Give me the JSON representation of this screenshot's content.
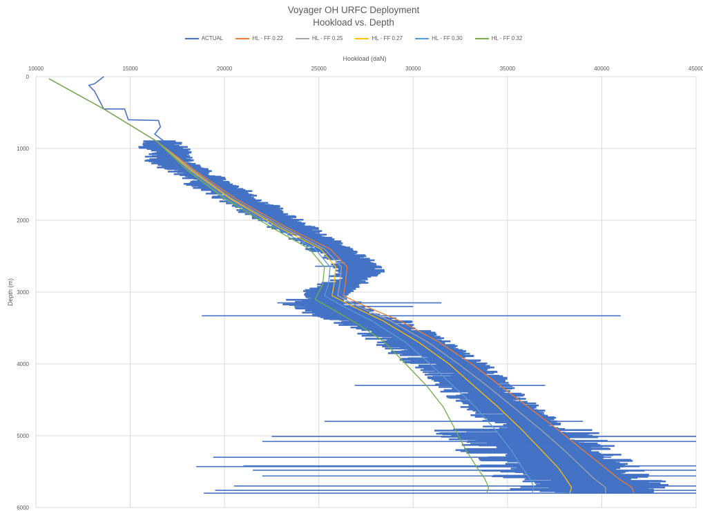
{
  "chart_data": {
    "type": "line",
    "title": "Voyager OH URFC Deployment",
    "subtitle": "Hookload vs. Depth",
    "xlabel": "Hookload (daN)",
    "ylabel": "Depth (m)",
    "xlim": [
      10000,
      45000
    ],
    "ylim": [
      0,
      6000
    ],
    "x_axis_position": "top",
    "y_axis_reversed": true,
    "grid": true,
    "legend_position": "top",
    "xticks": [
      "10000",
      "15000",
      "20000",
      "25000",
      "30000",
      "35000",
      "40000",
      "45000"
    ],
    "yticks": [
      "0",
      "1000",
      "2000",
      "3000",
      "4000",
      "5000",
      "6000"
    ],
    "series": [
      {
        "name": "ACTUAL",
        "color": "#4472C4",
        "width": 2.2,
        "points": [
          [
            13600,
            0
          ],
          [
            13100,
            100
          ],
          [
            12800,
            120
          ],
          [
            13100,
            200
          ],
          [
            13600,
            450
          ],
          [
            14700,
            450
          ],
          [
            14900,
            600
          ],
          [
            16500,
            610
          ],
          [
            16600,
            700
          ],
          [
            16300,
            800
          ],
          [
            16800,
            900
          ],
          [
            17200,
            1000
          ],
          [
            17500,
            1100
          ],
          [
            17400,
            1200
          ],
          [
            18400,
            1300
          ],
          [
            19100,
            1400
          ],
          [
            19500,
            1500
          ],
          [
            20600,
            1600
          ],
          [
            21000,
            1700
          ],
          [
            22000,
            1800
          ],
          [
            22500,
            1900
          ],
          [
            23300,
            2000
          ],
          [
            24000,
            2100
          ],
          [
            24500,
            2200
          ],
          [
            25400,
            2300
          ],
          [
            26000,
            2400
          ],
          [
            26600,
            2500
          ],
          [
            27300,
            2600
          ],
          [
            27600,
            2700
          ],
          [
            27200,
            2800
          ],
          [
            26500,
            2900
          ],
          [
            25800,
            3000
          ],
          [
            25600,
            3100
          ],
          [
            26000,
            3200
          ],
          [
            26800,
            3300
          ],
          [
            28400,
            3400
          ],
          [
            29100,
            3500
          ],
          [
            29900,
            3600
          ],
          [
            30600,
            3700
          ],
          [
            31200,
            3800
          ],
          [
            31800,
            3900
          ],
          [
            32500,
            4000
          ],
          [
            33100,
            4100
          ],
          [
            33600,
            4200
          ],
          [
            33900,
            4300
          ],
          [
            34300,
            4400
          ],
          [
            34800,
            4500
          ],
          [
            35300,
            4600
          ],
          [
            35800,
            4700
          ],
          [
            36300,
            4800
          ],
          [
            36600,
            4900
          ],
          [
            37000,
            5000
          ],
          [
            37500,
            5100
          ],
          [
            37900,
            5200
          ],
          [
            38300,
            5300
          ],
          [
            38800,
            5400
          ],
          [
            39400,
            5500
          ],
          [
            40100,
            5600
          ],
          [
            40700,
            5700
          ],
          [
            41000,
            5800
          ]
        ],
        "spikes": [
          {
            "depth": 3330,
            "from": 18800,
            "to": 41000
          },
          {
            "depth": 3150,
            "from": 22800,
            "to": 31500
          },
          {
            "depth": 3200,
            "from": 23700,
            "to": 30000
          },
          {
            "depth": 2640,
            "from": 24800,
            "to": 28300
          },
          {
            "depth": 5010,
            "from": 22500,
            "to": 45000
          },
          {
            "depth": 5080,
            "from": 22000,
            "to": 45000
          },
          {
            "depth": 5420,
            "from": 21000,
            "to": 45000
          },
          {
            "depth": 5480,
            "from": 21500,
            "to": 45000
          },
          {
            "depth": 5560,
            "from": 22000,
            "to": 45000
          },
          {
            "depth": 5700,
            "from": 20500,
            "to": 45000
          },
          {
            "depth": 5760,
            "from": 19500,
            "to": 45000
          },
          {
            "depth": 5800,
            "from": 18900,
            "to": 45000
          },
          {
            "depth": 5430,
            "from": 18500,
            "to": 42000
          },
          {
            "depth": 5300,
            "from": 19400,
            "to": 40500
          },
          {
            "depth": 4800,
            "from": 25300,
            "to": 39000
          },
          {
            "depth": 4300,
            "from": 26900,
            "to": 37000
          }
        ]
      },
      {
        "name": "HL - FF 0.22",
        "color": "#ED7D31",
        "width": 1.3,
        "points": [
          [
            10700,
            30
          ],
          [
            13600,
            450
          ],
          [
            16400,
            900
          ],
          [
            18400,
            1300
          ],
          [
            20600,
            1700
          ],
          [
            23300,
            2100
          ],
          [
            25600,
            2400
          ],
          [
            26500,
            2650
          ],
          [
            26400,
            2900
          ],
          [
            26300,
            3050
          ],
          [
            27500,
            3200
          ],
          [
            29300,
            3400
          ],
          [
            31400,
            3700
          ],
          [
            33100,
            4000
          ],
          [
            34600,
            4300
          ],
          [
            36100,
            4600
          ],
          [
            37600,
            4900
          ],
          [
            39000,
            5200
          ],
          [
            40200,
            5450
          ],
          [
            40900,
            5600
          ],
          [
            41600,
            5720
          ],
          [
            41700,
            5800
          ]
        ]
      },
      {
        "name": "HL - FF 0.25",
        "color": "#A5A5A5",
        "width": 1.3,
        "points": [
          [
            10700,
            30
          ],
          [
            13600,
            450
          ],
          [
            16400,
            900
          ],
          [
            18300,
            1300
          ],
          [
            20400,
            1700
          ],
          [
            23100,
            2100
          ],
          [
            25300,
            2400
          ],
          [
            26200,
            2650
          ],
          [
            26100,
            2900
          ],
          [
            26000,
            3050
          ],
          [
            27100,
            3200
          ],
          [
            28800,
            3400
          ],
          [
            30800,
            3700
          ],
          [
            32400,
            4000
          ],
          [
            33900,
            4300
          ],
          [
            35300,
            4600
          ],
          [
            36700,
            4900
          ],
          [
            38000,
            5200
          ],
          [
            39000,
            5450
          ],
          [
            39600,
            5600
          ],
          [
            40200,
            5720
          ],
          [
            40200,
            5800
          ]
        ]
      },
      {
        "name": "HL - FF 0.27",
        "color": "#FFC000",
        "width": 1.3,
        "points": [
          [
            10700,
            30
          ],
          [
            13600,
            450
          ],
          [
            16400,
            900
          ],
          [
            18200,
            1300
          ],
          [
            20300,
            1700
          ],
          [
            22900,
            2100
          ],
          [
            25100,
            2400
          ],
          [
            25900,
            2650
          ],
          [
            25800,
            2900
          ],
          [
            25700,
            3050
          ],
          [
            26800,
            3200
          ],
          [
            28400,
            3400
          ],
          [
            30300,
            3700
          ],
          [
            31900,
            4000
          ],
          [
            33200,
            4300
          ],
          [
            34500,
            4600
          ],
          [
            35700,
            4900
          ],
          [
            36800,
            5200
          ],
          [
            37700,
            5450
          ],
          [
            38100,
            5600
          ],
          [
            38400,
            5720
          ],
          [
            38300,
            5800
          ]
        ]
      },
      {
        "name": "HL - FF 0.30",
        "color": "#5B9BD5",
        "width": 1.3,
        "points": [
          [
            10700,
            30
          ],
          [
            13600,
            450
          ],
          [
            16400,
            900
          ],
          [
            18100,
            1300
          ],
          [
            20100,
            1700
          ],
          [
            22700,
            2100
          ],
          [
            24800,
            2400
          ],
          [
            25600,
            2650
          ],
          [
            25500,
            2900
          ],
          [
            25300,
            3050
          ],
          [
            26300,
            3200
          ],
          [
            27800,
            3400
          ],
          [
            29600,
            3700
          ],
          [
            30900,
            4000
          ],
          [
            32100,
            4300
          ],
          [
            33300,
            4600
          ],
          [
            34300,
            4900
          ],
          [
            35200,
            5200
          ],
          [
            35800,
            5450
          ],
          [
            36200,
            5600
          ],
          [
            36400,
            5720
          ],
          [
            36300,
            5800
          ]
        ]
      },
      {
        "name": "HL - FF 0.32",
        "color": "#70AD47",
        "width": 1.3,
        "points": [
          [
            10700,
            30
          ],
          [
            13600,
            450
          ],
          [
            16400,
            900
          ],
          [
            18000,
            1300
          ],
          [
            20000,
            1700
          ],
          [
            22500,
            2100
          ],
          [
            24500,
            2400
          ],
          [
            25300,
            2650
          ],
          [
            25200,
            2900
          ],
          [
            24800,
            3100
          ],
          [
            25800,
            3250
          ],
          [
            27100,
            3450
          ],
          [
            28500,
            3700
          ],
          [
            29600,
            4000
          ],
          [
            30700,
            4300
          ],
          [
            31600,
            4600
          ],
          [
            32200,
            4900
          ],
          [
            32800,
            5200
          ],
          [
            33400,
            5450
          ],
          [
            33800,
            5600
          ],
          [
            34000,
            5720
          ],
          [
            33900,
            5800
          ]
        ]
      }
    ]
  }
}
